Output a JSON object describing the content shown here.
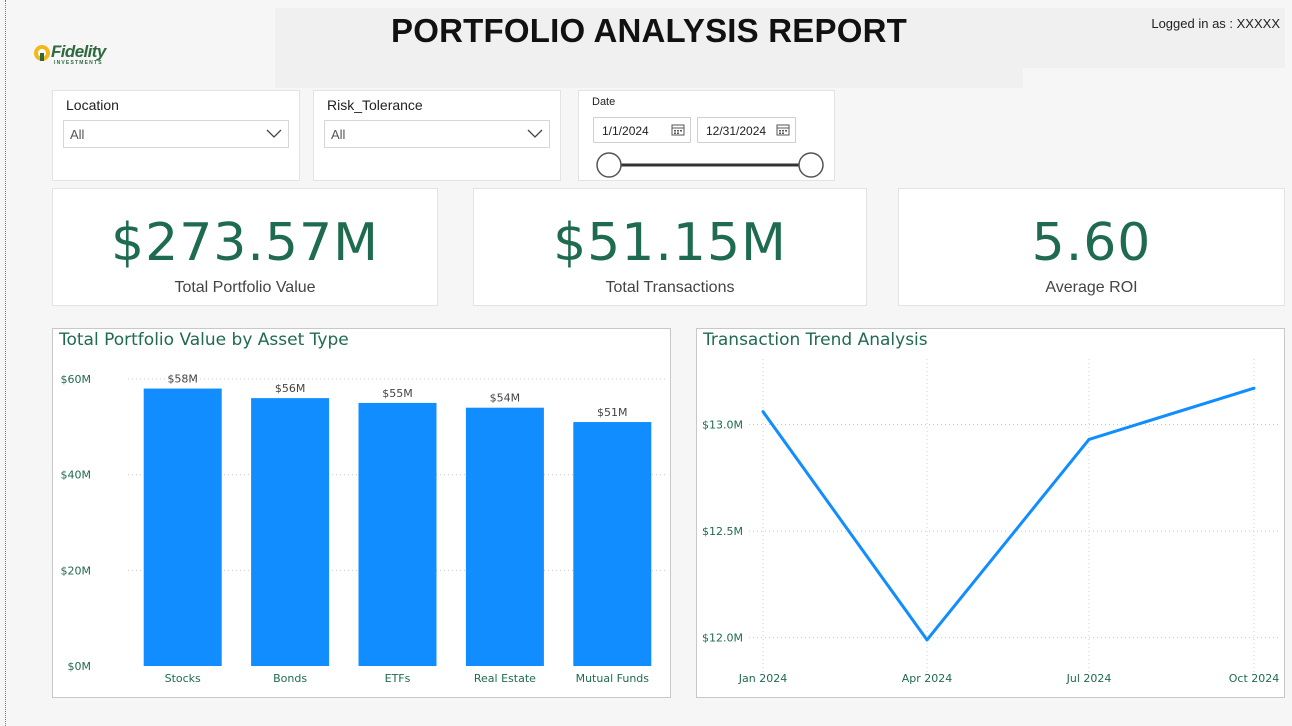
{
  "header": {
    "title": "PORTFOLIO ANALYSIS REPORT",
    "logged_in": "Logged in as : XXXXX",
    "logo_text": "Fidelity",
    "logo_subtext": "INVESTMENTS"
  },
  "colors": {
    "accent_green": "#1f6b4f",
    "bar_blue": "#118dff"
  },
  "filters": {
    "location": {
      "label": "Location",
      "value": "All"
    },
    "risk": {
      "label": "Risk_Tolerance",
      "value": "All"
    },
    "date": {
      "label": "Date",
      "start": "1/1/2024",
      "end": "12/31/2024"
    }
  },
  "kpis": {
    "portfolio": {
      "value": "$273.57M",
      "label": "Total Portfolio Value"
    },
    "transactions": {
      "value": "$51.15M",
      "label": "Total Transactions"
    },
    "roi": {
      "value": "5.60",
      "label": "Average ROI"
    }
  },
  "chart_data": [
    {
      "type": "bar",
      "title": "Total Portfolio Value by Asset Type",
      "categories": [
        "Stocks",
        "Bonds",
        "ETFs",
        "Real Estate",
        "Mutual Funds"
      ],
      "values": [
        58,
        56,
        55,
        54,
        51
      ],
      "data_labels": [
        "$58M",
        "$56M",
        "$55M",
        "$54M",
        "$51M"
      ],
      "yticks": [
        0,
        20,
        40,
        60
      ],
      "ytick_labels": [
        "$0M",
        "$20M",
        "$40M",
        "$60M"
      ],
      "ylim": [
        0,
        60
      ],
      "grid": true
    },
    {
      "type": "line",
      "title": "Transaction Trend Analysis",
      "x": [
        "Jan 2024",
        "Apr 2024",
        "Jul 2024",
        "Oct 2024"
      ],
      "values": [
        13.06,
        11.99,
        12.93,
        13.17
      ],
      "yticks": [
        12.0,
        12.5,
        13.0
      ],
      "ytick_labels": [
        "$12.0M",
        "$12.5M",
        "$13.0M"
      ],
      "ylim": [
        11.83,
        13.26
      ],
      "grid": true
    }
  ]
}
